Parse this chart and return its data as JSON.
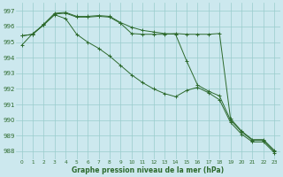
{
  "x": [
    0,
    1,
    2,
    3,
    4,
    5,
    6,
    7,
    8,
    9,
    10,
    11,
    12,
    13,
    14,
    15,
    16,
    17,
    18,
    19,
    20,
    21,
    22,
    23
  ],
  "line1": [
    995.4,
    995.5,
    996.1,
    996.8,
    996.85,
    996.6,
    996.6,
    996.65,
    996.6,
    996.2,
    995.55,
    995.5,
    995.5,
    995.5,
    995.55,
    995.5,
    995.5,
    995.5,
    995.55,
    990.1,
    989.3,
    988.75,
    988.75,
    988.05
  ],
  "line2": [
    995.4,
    995.5,
    996.15,
    996.85,
    996.9,
    996.65,
    996.65,
    996.7,
    996.65,
    996.25,
    995.95,
    995.75,
    995.65,
    995.55,
    995.5,
    993.8,
    992.25,
    991.85,
    991.55,
    990.0,
    989.25,
    988.7,
    988.7,
    988.0
  ],
  "line3": [
    994.8,
    995.55,
    996.1,
    996.75,
    996.5,
    995.5,
    995.0,
    994.6,
    994.1,
    993.5,
    992.9,
    992.4,
    992.0,
    991.7,
    991.5,
    991.9,
    992.1,
    991.75,
    991.3,
    989.85,
    989.1,
    988.6,
    988.6,
    987.9
  ],
  "bg_color": "#cce8ee",
  "grid_color": "#99cccc",
  "line_color": "#2d6a2d",
  "title": "Graphe pression niveau de la mer (hPa)",
  "ylim_min": 987.5,
  "ylim_max": 997.5,
  "yticks": [
    988,
    989,
    990,
    991,
    992,
    993,
    994,
    995,
    996,
    997
  ],
  "xlim_min": -0.5,
  "xlim_max": 23.5
}
